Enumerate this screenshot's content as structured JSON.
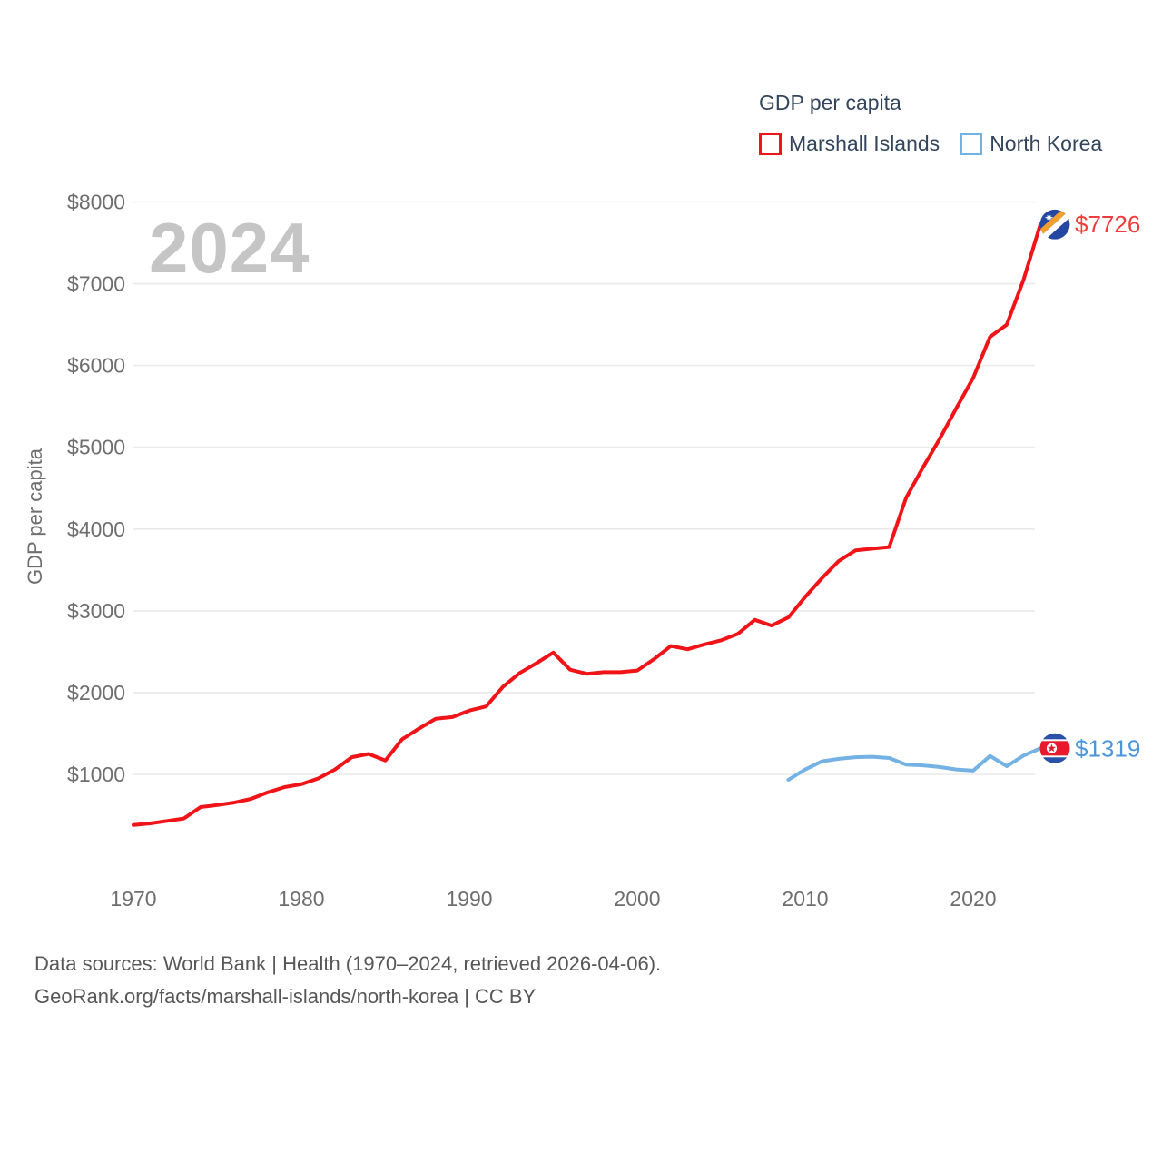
{
  "page": {
    "watermark": "2024",
    "source_line1": "Data sources: World Bank | Health (1970–2024, retrieved 2026-04-06).",
    "source_line2": "GeoRank.org/facts/marshall-islands/north-korea | CC BY"
  },
  "legend": {
    "title": "GDP per capita",
    "items": [
      {
        "label": "Marshall Islands",
        "color": "#f01418"
      },
      {
        "label": "North Korea",
        "color": "#74b2e4"
      }
    ]
  },
  "chart_data": {
    "type": "line",
    "title": "GDP per capita",
    "xlabel": "",
    "ylabel": "GDP per capita",
    "x_unit": "year",
    "xlim": [
      1970,
      2024
    ],
    "ylim": [
      0,
      8300
    ],
    "grid": "horizontal",
    "legend_position": "top-right",
    "x_ticks": [
      1970,
      1980,
      1990,
      2000,
      2010,
      2020
    ],
    "y_ticks": [
      1000,
      2000,
      3000,
      4000,
      5000,
      6000,
      7000,
      8000
    ],
    "y_tick_prefix": "$",
    "series": [
      {
        "name": "Marshall Islands",
        "color": "#f01418",
        "label_color": "#f23b3b",
        "flag": "marshall-islands",
        "start_year": 1970,
        "end_label": "$7726",
        "end_value": 7726,
        "values": [
          380,
          400,
          430,
          460,
          600,
          625,
          655,
          700,
          780,
          845,
          880,
          950,
          1060,
          1210,
          1250,
          1170,
          1430,
          1560,
          1680,
          1700,
          1780,
          1830,
          2070,
          2240,
          2360,
          2490,
          2280,
          2230,
          2250,
          2250,
          2270,
          2410,
          2570,
          2530,
          2590,
          2640,
          2720,
          2890,
          2820,
          2920,
          3170,
          3400,
          3610,
          3740,
          3760,
          3780,
          4380,
          4750,
          5100,
          5480,
          5850,
          6350,
          6500,
          7050,
          7726
        ]
      },
      {
        "name": "North Korea",
        "color": "#74b2e4",
        "label_color": "#4b95da",
        "flag": "north-korea",
        "start_year": 2009,
        "end_label": "$1319",
        "end_value": 1319,
        "values": [
          935,
          1060,
          1160,
          1190,
          1210,
          1215,
          1200,
          1120,
          1110,
          1090,
          1060,
          1045,
          1225,
          1100,
          1230,
          1319
        ]
      }
    ],
    "colors": {
      "grid": "#eaeaea",
      "axis_text": "#6e6e6e",
      "watermark": "#c5c5c5",
      "legend_text": "#32455c",
      "mh_flag_blue": "#2447a2",
      "mh_flag_orange": "#f49e2d",
      "nk_flag_blue": "#2a50a8",
      "nk_flag_red": "#e8192c"
    }
  }
}
